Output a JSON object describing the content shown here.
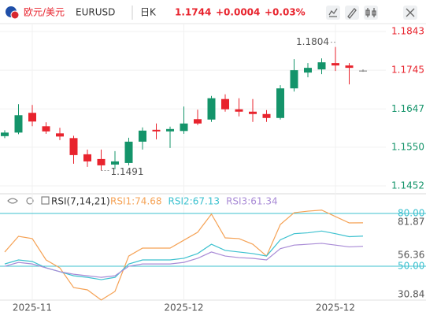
{
  "header": {
    "pair_name": "欧元/美元",
    "symbol": "EURUSD",
    "period": "日K",
    "price": "1.1744",
    "change": "+0.0004",
    "change_pct": "+0.03%"
  },
  "chart_data": [
    {
      "type": "candlestick",
      "categories": [
        null,
        null,
        "2025-11",
        null,
        null,
        null,
        null,
        null,
        null,
        null,
        null,
        null,
        null,
        "2025-12",
        null,
        null,
        null,
        null,
        null,
        null,
        null,
        null,
        null,
        null,
        "2025-12",
        null,
        null
      ],
      "open": [
        1.1578,
        1.1587,
        1.1637,
        1.1603,
        1.1585,
        1.1573,
        1.1532,
        1.152,
        1.1506,
        1.151,
        1.1564,
        1.1594,
        1.159,
        1.1591,
        1.1621,
        1.162,
        1.1672,
        1.1646,
        1.164,
        1.1634,
        1.1624,
        1.1699,
        1.1739,
        1.1747,
        1.1763,
        1.1757,
        1.1744
      ],
      "high": [
        1.1593,
        1.1659,
        1.1657,
        1.1613,
        1.1599,
        1.1579,
        1.1544,
        1.1544,
        1.154,
        1.1574,
        1.16,
        1.161,
        1.1602,
        1.1653,
        1.1645,
        1.168,
        1.1684,
        1.1674,
        1.1672,
        1.1644,
        1.1707,
        1.1773,
        1.1763,
        1.1775,
        1.1804,
        1.1763,
        1.1747
      ],
      "low": [
        1.1573,
        1.1583,
        1.1603,
        1.1584,
        1.1568,
        1.1508,
        1.15,
        1.1491,
        1.1494,
        1.1504,
        1.1544,
        1.157,
        1.1548,
        1.1584,
        1.1606,
        1.1614,
        1.164,
        1.1628,
        1.1614,
        1.1614,
        1.162,
        1.1691,
        1.1727,
        1.1735,
        1.1743,
        1.1709,
        1.1741
      ],
      "close": [
        1.1587,
        1.1631,
        1.1615,
        1.159,
        1.1577,
        1.153,
        1.1514,
        1.1504,
        1.1514,
        1.1564,
        1.1592,
        1.159,
        1.1596,
        1.161,
        1.161,
        1.1674,
        1.1646,
        1.164,
        1.1634,
        1.1624,
        1.1699,
        1.1745,
        1.1751,
        1.1765,
        1.1757,
        1.1751,
        1.1744
      ],
      "high_labels": [
        null,
        null,
        null,
        null,
        null,
        null,
        null,
        null,
        null,
        null,
        null,
        null,
        null,
        null,
        null,
        null,
        null,
        null,
        null,
        null,
        null,
        null,
        null,
        null,
        "1.1804",
        null,
        null
      ],
      "low_labels": [
        null,
        null,
        null,
        null,
        null,
        null,
        null,
        "1.1491",
        null,
        null,
        null,
        null,
        null,
        null,
        null,
        null,
        null,
        null,
        null,
        null,
        null,
        null,
        null,
        null,
        null,
        null,
        null
      ],
      "up_color": "#14946a",
      "down_color": "#e8232d",
      "flat_color": "#777777",
      "ylim": [
        1.1438,
        1.1863
      ],
      "yticks": [
        1.1843,
        1.1745,
        1.1647,
        {
          "value": 1.155,
          "label": "1.1550"
        },
        1.1452
      ],
      "ytick_colors": [
        "#e8232d",
        "#e8232d",
        "#14946a",
        "#14946a",
        "#14946a"
      ],
      "grid": true
    },
    {
      "type": "line",
      "title": "RSI(7,14,21)",
      "series": [
        {
          "name": "RSI1:74.68",
          "color": "#f5a255",
          "values": [
            58.1,
            67.0,
            65.7,
            53.6,
            49.1,
            37.9,
            36.6,
            30.84,
            35.7,
            55.8,
            60.3,
            60.3,
            60.3,
            64.8,
            69.3,
            79.6,
            66.1,
            65.7,
            62.5,
            55.8,
            73.7,
            80.4,
            81.3,
            81.87,
            78.2,
            74.6,
            74.68
          ]
        },
        {
          "name": "RSI2:67.13",
          "color": "#3cc1cf",
          "values": [
            51.3,
            53.6,
            52.7,
            49.1,
            46.9,
            44.6,
            43.7,
            42.4,
            43.7,
            51.3,
            53.6,
            53.6,
            53.6,
            54.5,
            57.2,
            62.5,
            59.0,
            58.1,
            57.2,
            55.8,
            65.0,
            68.5,
            69.0,
            70.0,
            68.5,
            66.8,
            67.13
          ]
        },
        {
          "name": "RSI3:61.34",
          "color": "#a98bd6",
          "values": [
            50.0,
            52.2,
            51.3,
            49.1,
            46.9,
            45.5,
            44.6,
            43.7,
            44.6,
            50.0,
            51.3,
            51.3,
            51.3,
            52.2,
            54.5,
            58.1,
            55.8,
            54.9,
            54.5,
            53.6,
            60.0,
            62.0,
            62.5,
            63.0,
            62.0,
            61.0,
            61.34
          ]
        }
      ],
      "ylim": [
        29,
        84
      ],
      "yticks": [
        81.87,
        56.36,
        30.84
      ],
      "hlines": [
        {
          "value": 80,
          "label": "80.00"
        },
        {
          "value": 50,
          "label": "50.00"
        }
      ],
      "hline_color": "#3cc1cf"
    }
  ]
}
